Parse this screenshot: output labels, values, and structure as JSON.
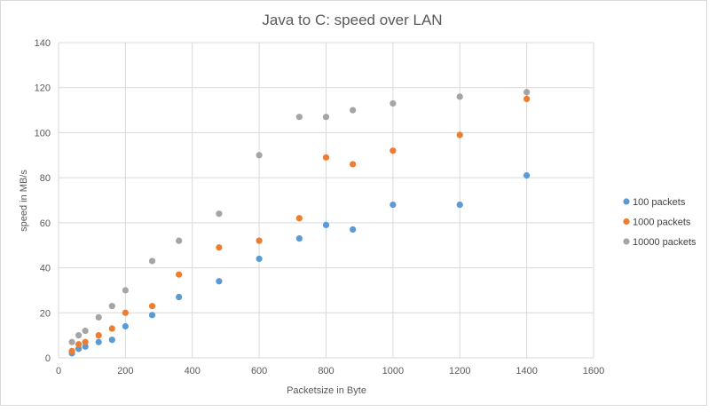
{
  "chart_data": {
    "type": "scatter",
    "title": "Java to C: speed over LAN",
    "xlabel": "Packetsize in Byte",
    "ylabel": "speed in MB/s",
    "xlim": [
      0,
      1600
    ],
    "ylim": [
      0,
      140
    ],
    "xticks": [
      0,
      200,
      400,
      600,
      800,
      1000,
      1200,
      1400,
      1600
    ],
    "yticks": [
      0,
      20,
      40,
      60,
      80,
      100,
      120,
      140
    ],
    "grid": true,
    "legend_position": "right",
    "series": [
      {
        "name": "100 packets",
        "color": "#5b9bd5",
        "x": [
          40,
          60,
          80,
          120,
          160,
          200,
          280,
          360,
          480,
          600,
          720,
          800,
          880,
          1000,
          1200,
          1400
        ],
        "y": [
          2,
          4,
          5,
          7,
          8,
          14,
          19,
          27,
          34,
          44,
          53,
          59,
          57,
          68,
          68,
          81
        ]
      },
      {
        "name": "1000 packets",
        "color": "#ed7d31",
        "x": [
          40,
          60,
          80,
          120,
          160,
          200,
          280,
          360,
          480,
          600,
          720,
          800,
          880,
          1000,
          1200,
          1400
        ],
        "y": [
          3,
          6,
          7,
          10,
          13,
          20,
          23,
          37,
          49,
          52,
          62,
          89,
          86,
          92,
          99,
          115
        ]
      },
      {
        "name": "10000 packets",
        "color": "#a5a5a5",
        "x": [
          40,
          60,
          80,
          120,
          160,
          200,
          280,
          360,
          480,
          600,
          720,
          800,
          880,
          1000,
          1200,
          1400
        ],
        "y": [
          7,
          10,
          12,
          18,
          23,
          30,
          43,
          52,
          64,
          90,
          107,
          107,
          110,
          113,
          116,
          118
        ]
      }
    ]
  }
}
